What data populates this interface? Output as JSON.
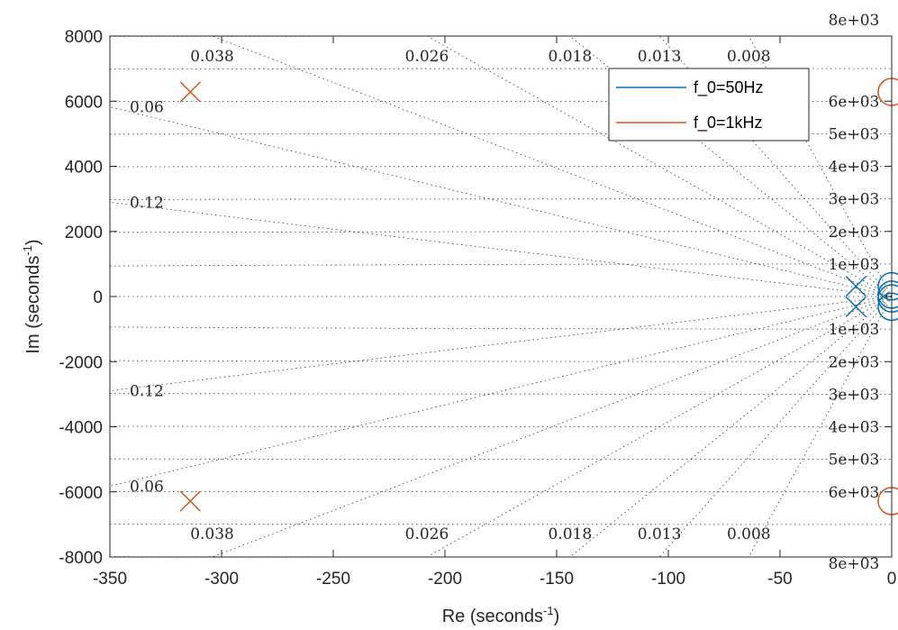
{
  "chart_data": {
    "type": "scatter",
    "title": "",
    "xlabel": "Re (seconds",
    "xlabel_sup": "-1",
    "xlabel_end": ")",
    "ylabel": "Im (seconds",
    "ylabel_sup": "-1",
    "ylabel_end": ")",
    "xlim": [
      -350,
      0
    ],
    "ylim": [
      -8000,
      8000
    ],
    "x_ticks": [
      -350,
      -300,
      -250,
      -200,
      -150,
      -100,
      -50,
      0
    ],
    "x_tick_labels": [
      "-350",
      "-300",
      "-250",
      "-200",
      "-150",
      "-100",
      "-50",
      "0"
    ],
    "y_ticks": [
      -8000,
      -6000,
      -4000,
      -2000,
      0,
      2000,
      4000,
      6000,
      8000
    ],
    "y_tick_labels": [
      "-8000",
      "-6000",
      "-4000",
      "-2000",
      "0",
      "2000",
      "4000",
      "6000",
      "8000"
    ],
    "grid": "s-plane damping/frequency grid (dotted)",
    "damping_grid": [
      0.008,
      0.013,
      0.018,
      0.026,
      0.038,
      0.06,
      0.12
    ],
    "damping_labels": [
      "0.008",
      "0.013",
      "0.018",
      "0.026",
      "0.038",
      "0.06",
      "0.12"
    ],
    "frequency_grid": [
      1000,
      2000,
      3000,
      4000,
      5000,
      6000,
      7000,
      8000
    ],
    "frequency_labels": [
      "1e+03",
      "2e+03",
      "3e+03",
      "4e+03",
      "5e+03",
      "6e+03",
      "8e+03"
    ],
    "legend_position": "top-right",
    "series": [
      {
        "name": "f_0=50Hz",
        "color": "#0072BD",
        "poles": [
          [
            -16,
            314
          ],
          [
            -16,
            -314
          ]
        ],
        "zeros": [
          [
            0,
            314
          ],
          [
            0,
            -314
          ],
          [
            0,
            60
          ],
          [
            0,
            -60
          ]
        ]
      },
      {
        "name": "f_0=1kHz",
        "color": "#D95319",
        "poles": [
          [
            -314,
            6283
          ],
          [
            -314,
            -6283
          ]
        ],
        "zeros": [
          [
            0,
            6283
          ],
          [
            0,
            -6283
          ]
        ]
      }
    ]
  }
}
